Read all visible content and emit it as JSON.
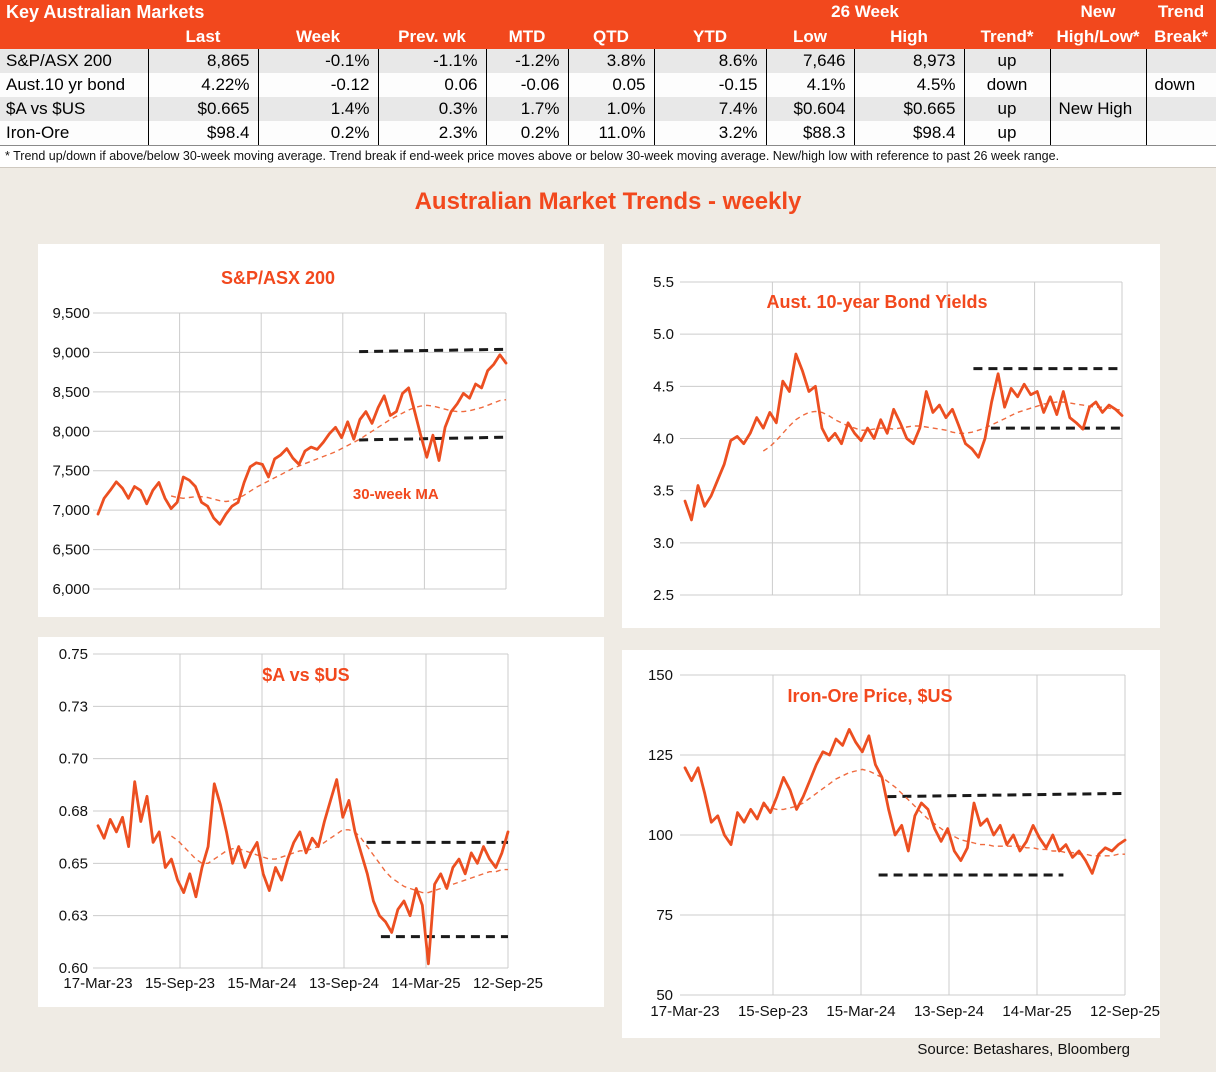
{
  "colors": {
    "accent": "#F2481D",
    "line": "#EC4F21",
    "ma": "#EF6A3E",
    "background": "#EFEBE4",
    "grid": "#cccccc",
    "ref_line": "#1a1a1a",
    "row_stripe": "#E8E8E8"
  },
  "page": {
    "heading": "Australian Market Trends - weekly",
    "source": "Source: Betashares, Bloomberg"
  },
  "table": {
    "corner_title": "Key Australian Markets",
    "group_headers": {
      "week26": "26 Week",
      "new": "New",
      "trend": "Trend"
    },
    "columns": [
      "",
      "Last",
      "Week",
      "Prev. wk",
      "MTD",
      "QTD",
      "YTD",
      "Low",
      "High",
      "Trend*",
      "High/Low*",
      "Break*"
    ],
    "rows": [
      {
        "label": "S&P/ASX 200",
        "last": "8,865",
        "week": "-0.1%",
        "prev_wk": "-1.1%",
        "mtd": "-1.2%",
        "qtd": "3.8%",
        "ytd": "8.6%",
        "low": "7,646",
        "high": "8,973",
        "trend": "up",
        "new_high_low": "",
        "trend_break": ""
      },
      {
        "label": "Aust.10 yr bond",
        "last": "4.22%",
        "week": "-0.12",
        "prev_wk": "0.06",
        "mtd": "-0.06",
        "qtd": "0.05",
        "ytd": "-0.15",
        "low": "4.1%",
        "high": "4.5%",
        "trend": "down",
        "new_high_low": "",
        "trend_break": "down"
      },
      {
        "label": "$A vs $US",
        "last": "$0.665",
        "week": "1.4%",
        "prev_wk": "0.3%",
        "mtd": "1.7%",
        "qtd": "1.0%",
        "ytd": "7.4%",
        "low": "$0.604",
        "high": "$0.665",
        "trend": "up",
        "new_high_low": "New High",
        "trend_break": ""
      },
      {
        "label": "Iron-Ore",
        "last": "$98.4",
        "week": "0.2%",
        "prev_wk": "2.3%",
        "mtd": "0.2%",
        "qtd": "11.0%",
        "ytd": "3.2%",
        "low": "$88.3",
        "high": "$98.4",
        "trend": "up",
        "new_high_low": "",
        "trend_break": ""
      }
    ],
    "footnote": "*  Trend up/down if above/below 30-week moving average. Trend break if end-week price moves above or below 30-week moving average.  New/high low with reference to past 26 week range."
  },
  "chart_data": [
    {
      "type": "line",
      "title": "S&P/ASX 200",
      "grid": true,
      "legend_position": "none",
      "ylim": [
        6000,
        9500
      ],
      "y_ticks": [
        9500,
        9000,
        8500,
        8000,
        7500,
        7000,
        6500,
        6000
      ],
      "y_tick_labels": [
        "9,500",
        "9,000",
        "8,500",
        "8,000",
        "7,500",
        "7,000",
        "6,500",
        "6,000"
      ],
      "x_labels": [
        "17-Mar-23",
        "15-Sep-23",
        "15-Mar-24",
        "13-Sep-24",
        "14-Mar-25",
        "12-Sep-25"
      ],
      "x_labels_shown": false,
      "series": [
        {
          "name": "S&P/ASX 200 weekly",
          "values": [
            6950,
            7150,
            7250,
            7360,
            7280,
            7150,
            7300,
            7250,
            7080,
            7250,
            7350,
            7150,
            7020,
            7100,
            7420,
            7380,
            7300,
            7100,
            7050,
            6900,
            6820,
            6950,
            7050,
            7100,
            7350,
            7550,
            7600,
            7580,
            7420,
            7650,
            7700,
            7780,
            7660,
            7580,
            7750,
            7800,
            7770,
            7860,
            7970,
            8050,
            7920,
            8120,
            7900,
            8150,
            8250,
            8100,
            8300,
            8450,
            8200,
            8250,
            8480,
            8550,
            8250,
            7950,
            7670,
            7950,
            7630,
            8050,
            8250,
            8350,
            8480,
            8420,
            8600,
            8550,
            8770,
            8850,
            8970,
            8865
          ]
        },
        {
          "name": "30-week MA",
          "style": "dashed",
          "values": [
            null,
            null,
            null,
            null,
            null,
            null,
            null,
            null,
            null,
            null,
            null,
            null,
            7180,
            7160,
            7150,
            7160,
            7170,
            7170,
            7160,
            7140,
            7120,
            7110,
            7120,
            7150,
            7190,
            7240,
            7290,
            7330,
            7370,
            7410,
            7450,
            7490,
            7530,
            7560,
            7590,
            7620,
            7650,
            7680,
            7710,
            7740,
            7780,
            7820,
            7860,
            7900,
            7950,
            8000,
            8050,
            8100,
            8150,
            8190,
            8230,
            8270,
            8300,
            8320,
            8330,
            8320,
            8300,
            8280,
            8260,
            8250,
            8250,
            8260,
            8280,
            8300,
            8330,
            8360,
            8390,
            8400
          ]
        }
      ],
      "ref_lines": [
        {
          "y1": 9010,
          "y2": 9040,
          "x1": 0.64,
          "x2": 1.0
        },
        {
          "y1": 7890,
          "y2": 7925,
          "x1": 0.64,
          "x2": 1.0
        }
      ],
      "annotation": {
        "text": "30-week MA",
        "x": 0.73,
        "y": 7140
      }
    },
    {
      "type": "line",
      "title": "Aust. 10-year Bond Yields",
      "grid": true,
      "legend_position": "none",
      "ylim": [
        2.5,
        5.5
      ],
      "y_ticks": [
        5.5,
        5.0,
        4.5,
        4.0,
        3.5,
        3.0,
        2.5
      ],
      "y_tick_labels": [
        "5.5",
        "5.0",
        "4.5",
        "4.0",
        "3.5",
        "3.0",
        "2.5"
      ],
      "x_labels": [
        "17-Mar-23",
        "15-Sep-23",
        "15-Mar-24",
        "13-Sep-24",
        "14-Mar-25",
        "12-Sep-25"
      ],
      "x_labels_shown": false,
      "series": [
        {
          "name": "Aust. 10-year bond yield weekly",
          "values": [
            3.4,
            3.22,
            3.55,
            3.35,
            3.45,
            3.6,
            3.75,
            3.98,
            4.02,
            3.95,
            4.05,
            4.2,
            4.1,
            4.25,
            4.15,
            4.55,
            4.45,
            4.81,
            4.65,
            4.45,
            4.5,
            4.1,
            3.98,
            4.05,
            3.95,
            4.15,
            4.05,
            3.98,
            4.1,
            4.0,
            4.18,
            4.05,
            4.28,
            4.15,
            4.0,
            3.95,
            4.1,
            4.45,
            4.25,
            4.32,
            4.2,
            4.28,
            4.12,
            3.95,
            3.9,
            3.82,
            4.0,
            4.35,
            4.62,
            4.3,
            4.48,
            4.4,
            4.52,
            4.42,
            4.45,
            4.25,
            4.4,
            4.23,
            4.45,
            4.2,
            4.15,
            4.09,
            4.3,
            4.35,
            4.25,
            4.32,
            4.28,
            4.22
          ]
        },
        {
          "name": "30-week MA",
          "style": "dashed",
          "values": [
            null,
            null,
            null,
            null,
            null,
            null,
            null,
            null,
            null,
            null,
            null,
            null,
            3.88,
            3.92,
            3.98,
            4.05,
            4.12,
            4.18,
            4.22,
            4.25,
            4.26,
            4.25,
            4.22,
            4.18,
            4.15,
            4.12,
            4.1,
            4.08,
            4.08,
            4.09,
            4.1,
            4.1,
            4.09,
            4.1,
            4.11,
            4.12,
            4.12,
            4.11,
            4.1,
            4.09,
            4.08,
            4.06,
            4.05,
            4.05,
            4.06,
            4.08,
            4.1,
            4.13,
            4.16,
            4.19,
            4.22,
            4.25,
            4.27,
            4.29,
            4.31,
            4.33,
            4.34,
            4.35,
            4.35,
            4.34,
            4.33,
            4.32,
            4.31,
            4.3,
            4.3,
            4.29,
            4.28,
            4.27
          ]
        }
      ],
      "ref_lines": [
        {
          "y1": 4.67,
          "y2": 4.67,
          "x1": 0.66,
          "x2": 1.0
        },
        {
          "y1": 4.1,
          "y2": 4.1,
          "x1": 0.7,
          "x2": 1.0
        }
      ],
      "annotation": null
    },
    {
      "type": "line",
      "title": "$A vs $US",
      "grid": true,
      "legend_position": "none",
      "ylim": [
        0.6,
        0.75
      ],
      "y_ticks": [
        0.75,
        0.725,
        0.7,
        0.675,
        0.65,
        0.625,
        0.6
      ],
      "y_tick_labels": [
        "0.75",
        "0.73",
        "0.70",
        "0.68",
        "0.65",
        "0.63",
        "0.60"
      ],
      "x_labels": [
        "17-Mar-23",
        "15-Sep-23",
        "15-Mar-24",
        "13-Sep-24",
        "14-Mar-25",
        "12-Sep-25"
      ],
      "x_labels_shown": true,
      "series": [
        {
          "name": "$A vs $US weekly",
          "values": [
            0.668,
            0.662,
            0.671,
            0.665,
            0.672,
            0.658,
            0.689,
            0.67,
            0.682,
            0.66,
            0.665,
            0.648,
            0.652,
            0.642,
            0.636,
            0.645,
            0.634,
            0.648,
            0.658,
            0.688,
            0.678,
            0.665,
            0.65,
            0.658,
            0.648,
            0.655,
            0.66,
            0.645,
            0.637,
            0.648,
            0.642,
            0.652,
            0.66,
            0.665,
            0.655,
            0.662,
            0.658,
            0.67,
            0.68,
            0.69,
            0.672,
            0.68,
            0.665,
            0.655,
            0.645,
            0.632,
            0.625,
            0.622,
            0.617,
            0.628,
            0.632,
            0.625,
            0.638,
            0.63,
            0.602,
            0.64,
            0.645,
            0.638,
            0.648,
            0.652,
            0.645,
            0.655,
            0.65,
            0.658,
            0.652,
            0.648,
            0.655,
            0.665
          ]
        },
        {
          "name": "30-week MA",
          "style": "dashed",
          "values": [
            null,
            null,
            null,
            null,
            null,
            null,
            null,
            null,
            null,
            null,
            null,
            null,
            0.663,
            0.661,
            0.658,
            0.655,
            0.652,
            0.65,
            0.65,
            0.652,
            0.654,
            0.656,
            0.657,
            0.657,
            0.656,
            0.655,
            0.654,
            0.653,
            0.652,
            0.652,
            0.653,
            0.654,
            0.655,
            0.656,
            0.656,
            0.657,
            0.658,
            0.66,
            0.662,
            0.664,
            0.666,
            0.666,
            0.665,
            0.662,
            0.658,
            0.654,
            0.65,
            0.646,
            0.643,
            0.641,
            0.639,
            0.638,
            0.637,
            0.636,
            0.636,
            0.637,
            0.638,
            0.639,
            0.64,
            0.641,
            0.642,
            0.643,
            0.644,
            0.645,
            0.646,
            0.646,
            0.647,
            0.647
          ]
        }
      ],
      "ref_lines": [
        {
          "y1": 0.66,
          "y2": 0.66,
          "x1": 0.655,
          "x2": 1.0
        },
        {
          "y1": 0.615,
          "y2": 0.615,
          "x1": 0.69,
          "x2": 1.0
        }
      ],
      "annotation": null
    },
    {
      "type": "line",
      "title": "Iron-Ore Price, $US",
      "grid": true,
      "legend_position": "none",
      "ylim": [
        50,
        150
      ],
      "y_ticks": [
        150,
        125,
        100,
        75,
        50
      ],
      "y_tick_labels": [
        "150",
        "125",
        "100",
        "75",
        "50"
      ],
      "x_labels": [
        "17-Mar-23",
        "15-Sep-23",
        "15-Mar-24",
        "13-Sep-24",
        "14-Mar-25",
        "12-Sep-25"
      ],
      "x_labels_shown": true,
      "series": [
        {
          "name": "Iron-ore price weekly",
          "values": [
            121,
            117,
            121,
            113,
            104,
            106,
            100,
            97,
            107,
            104,
            108,
            105,
            110,
            107,
            112,
            118,
            114,
            108,
            112,
            117,
            122,
            126,
            125,
            130,
            128,
            133,
            129,
            126,
            131,
            122,
            118,
            108,
            100,
            103,
            95,
            106,
            110,
            108,
            102,
            98,
            102,
            95,
            92,
            96,
            110,
            103,
            105,
            100,
            103,
            97,
            100,
            95,
            98,
            103,
            99,
            96,
            100,
            95,
            97,
            93,
            95,
            92,
            88,
            94,
            96,
            95,
            97,
            98.4
          ]
        },
        {
          "name": "30-week MA",
          "style": "dashed",
          "values": [
            null,
            null,
            null,
            null,
            null,
            null,
            null,
            null,
            null,
            null,
            null,
            null,
            109,
            108.5,
            108,
            108,
            108.5,
            109,
            110,
            111.5,
            113,
            114.5,
            116,
            117.5,
            118.5,
            119.5,
            120,
            120.5,
            120,
            119,
            118,
            116.5,
            115,
            113,
            111,
            109,
            107,
            105,
            103.5,
            102,
            100.5,
            99.5,
            98.5,
            98,
            97.5,
            97,
            97,
            96.5,
            96.5,
            96.5,
            96.5,
            96.5,
            96,
            96,
            95.5,
            95.5,
            95,
            95,
            94.5,
            94.5,
            94,
            94,
            93.5,
            93.5,
            93.5,
            93.5,
            94,
            94
          ]
        }
      ],
      "ref_lines": [
        {
          "y1": 112,
          "y2": 113,
          "x1": 0.46,
          "x2": 1.0
        },
        {
          "y1": 87.5,
          "y2": 87.5,
          "x1": 0.44,
          "x2": 0.86
        }
      ],
      "annotation": null
    }
  ]
}
